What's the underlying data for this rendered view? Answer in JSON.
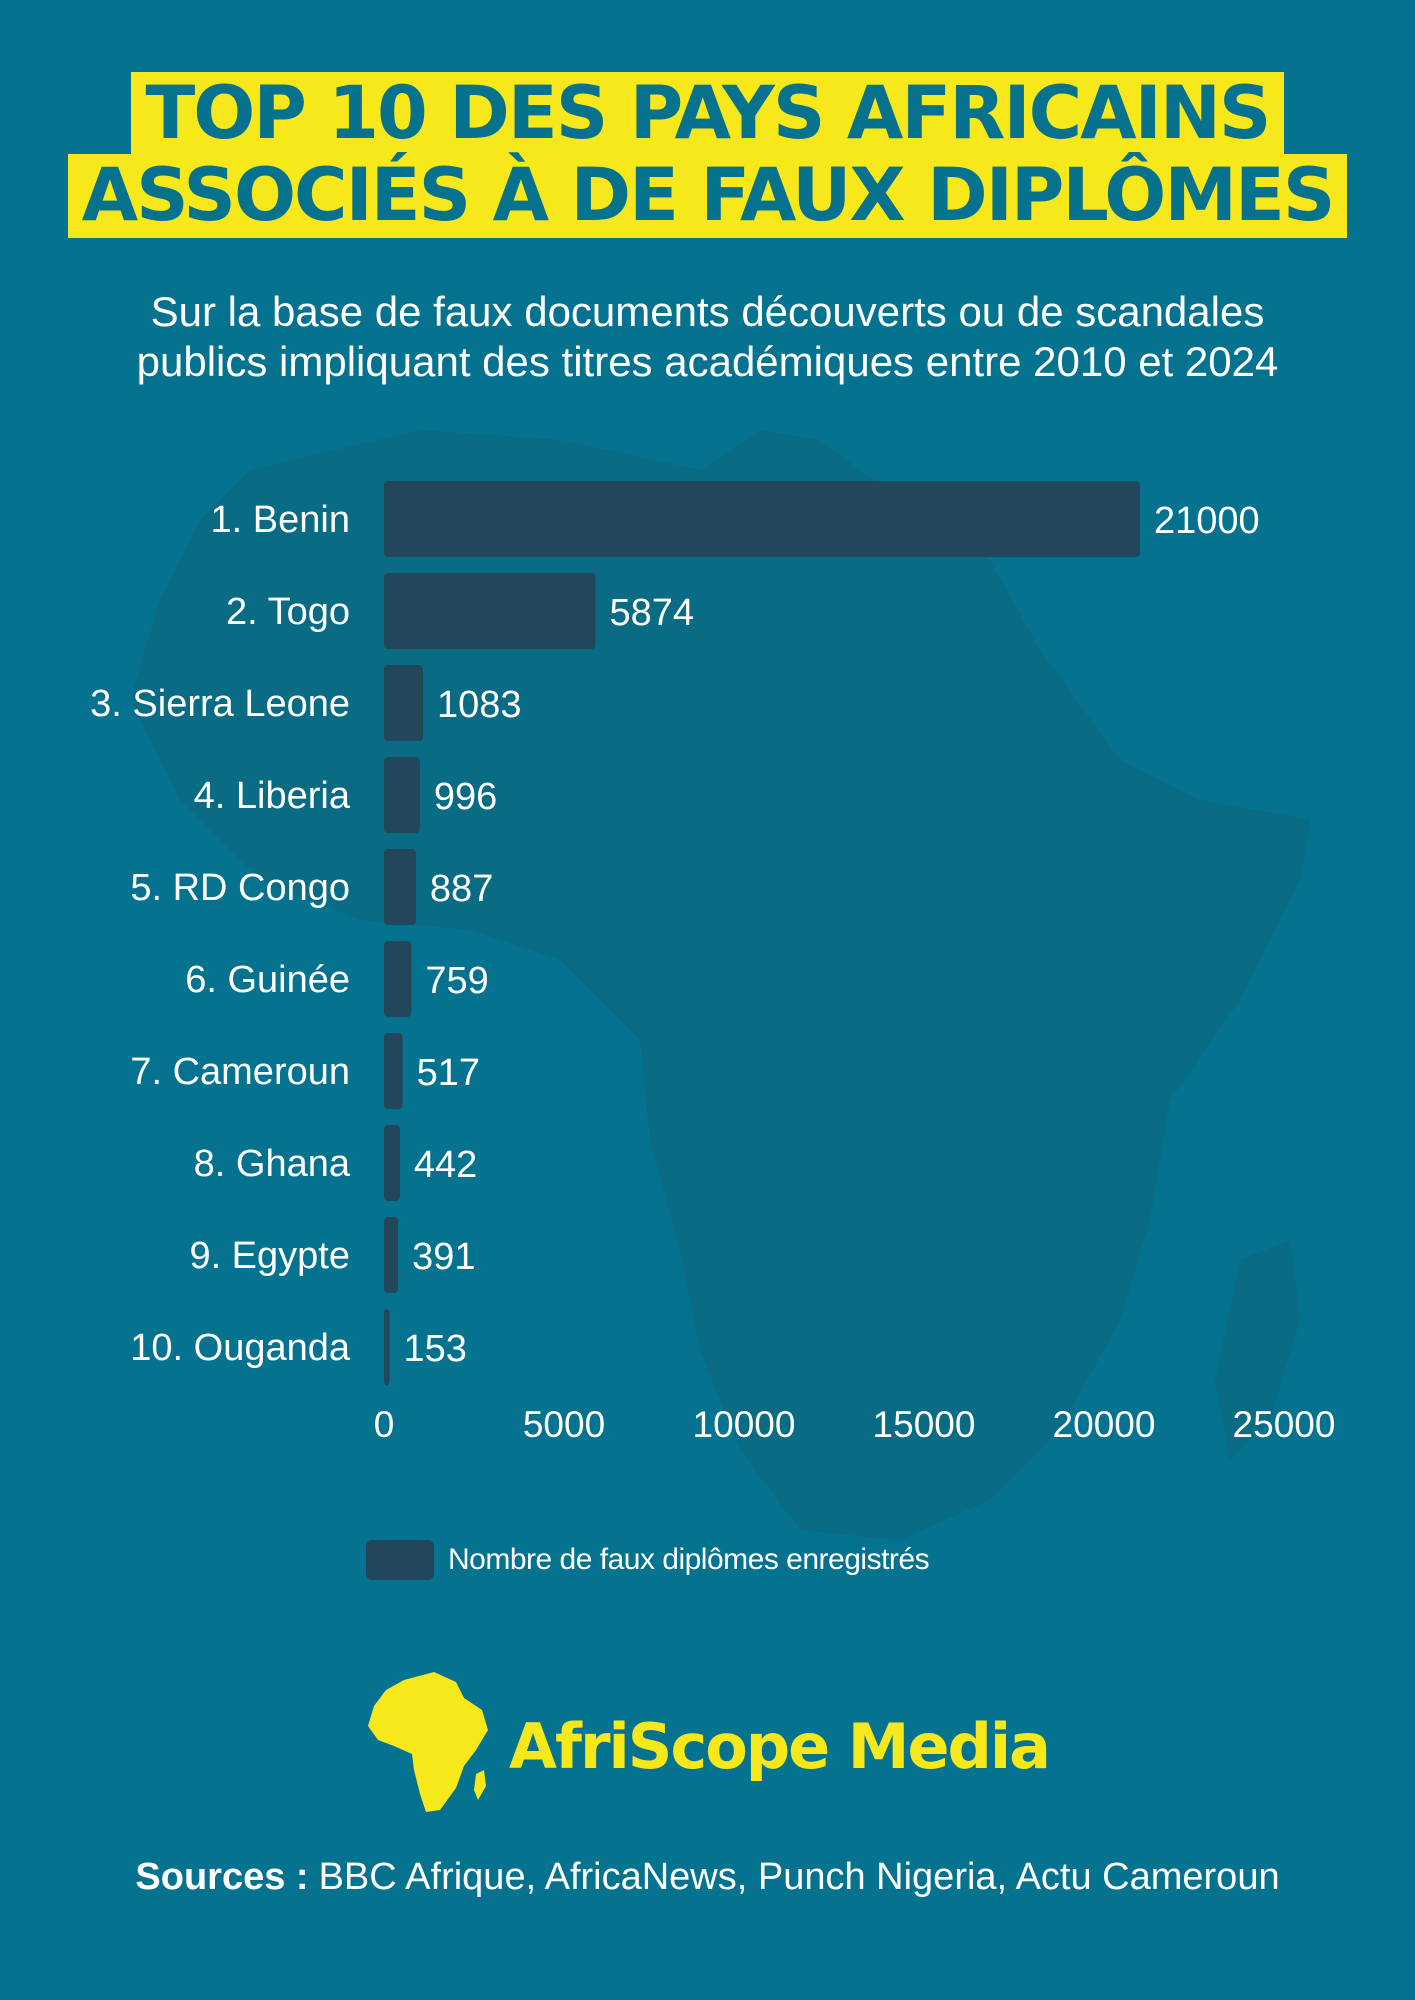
{
  "header": {
    "title_line1": "TOP 10 DES PAYS AFRICAINS",
    "title_line2": "ASSOCIÉS À DE FAUX DIPLÔMES",
    "subtitle_line1": "Sur la base de faux documents découverts ou de scandales",
    "subtitle_line2": "publics impliquant des titres académiques entre 2010 et 2024"
  },
  "chart_data": {
    "type": "bar",
    "orientation": "horizontal",
    "categories": [
      "1. Benin",
      "2. Togo",
      "3. Sierra Leone",
      "4. Liberia",
      "5. RD Congo",
      "6. Guinée",
      "7. Cameroun",
      "8. Ghana",
      "9. Egypte",
      "10. Ouganda"
    ],
    "series": [
      {
        "name": "Nombre de faux diplômes enregistrés",
        "values": [
          21000,
          5874,
          1083,
          996,
          887,
          759,
          517,
          442,
          391,
          153
        ]
      }
    ],
    "xlim": [
      0,
      25000
    ],
    "xticks": [
      "0",
      "5000",
      "10000",
      "15000",
      "20000",
      "25000"
    ],
    "data_labels": true,
    "grid": false,
    "legend_position": "bottom",
    "bar_color": "#22465a"
  },
  "legend": {
    "label": "Nombre de faux diplômes enregistrés"
  },
  "brand": {
    "name": "AfriScope Media",
    "logo_icon": "africa-map-icon",
    "color": "#f7e81c"
  },
  "footer": {
    "sources_label": "Sources :",
    "sources_text": "BBC Afrique, AfricaNews, Punch Nigeria, Actu Cameroun"
  },
  "colors": {
    "background": "#05738f",
    "accent": "#f7e81c",
    "map_shadow": "#0b6a82"
  }
}
